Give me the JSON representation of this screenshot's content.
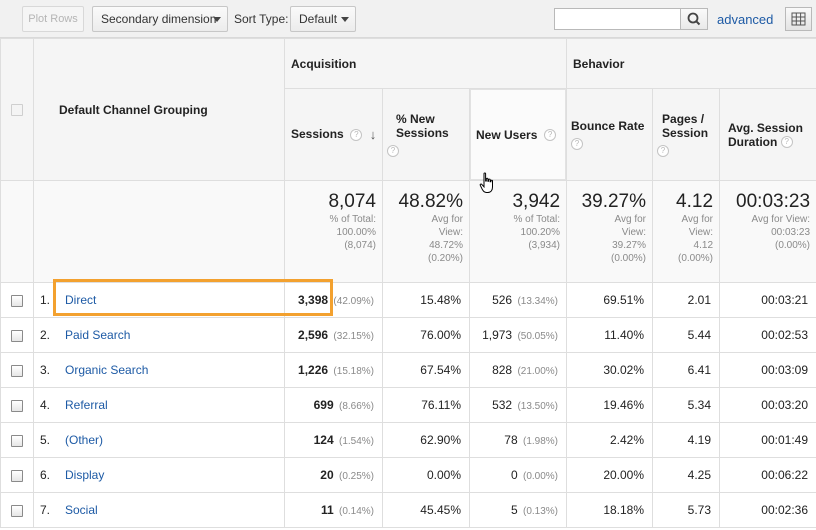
{
  "toolbar": {
    "plot_rows_label": "Plot Rows",
    "secondary_dimension_label": "Secondary dimension",
    "sort_type_label": "Sort Type:",
    "sort_type_value": "Default",
    "search_value": "",
    "advanced_label": "advanced"
  },
  "table": {
    "dimension_header": "Default Channel Grouping",
    "groups": {
      "acquisition": "Acquisition",
      "behavior": "Behavior"
    },
    "columns": {
      "sessions": "Sessions",
      "pct_new_sessions": "% New Sessions",
      "new_users": "New Users",
      "bounce_rate": "Bounce Rate",
      "pages_session": "Pages / Session",
      "avg_session_duration": "Avg. Session Duration"
    },
    "help_glyph": "?",
    "totals": {
      "sessions": {
        "value": "8,074",
        "l1": "% of Total:",
        "l2": "100.00%",
        "l3": "(8,074)"
      },
      "pct_new_sessions": {
        "value": "48.82%",
        "l1": "Avg for",
        "l2": "View:",
        "l3": "48.72%",
        "l4": "(0.20%)"
      },
      "new_users": {
        "value": "3,942",
        "l1": "% of Total:",
        "l2": "100.20%",
        "l3": "(3,934)"
      },
      "bounce_rate": {
        "value": "39.27%",
        "l1": "Avg for",
        "l2": "View:",
        "l3": "39.27%",
        "l4": "(0.00%)"
      },
      "pages_session": {
        "value": "4.12",
        "l1": "Avg for",
        "l2": "View:",
        "l3": "4.12",
        "l4": "(0.00%)"
      },
      "avg_session_duration": {
        "value": "00:03:23",
        "l1": "Avg for View:",
        "l2": "00:03:23",
        "l3": "(0.00%)"
      }
    },
    "rows": [
      {
        "index": "1.",
        "channel": "Direct",
        "sessions": "3,398",
        "sessions_pct": "(42.09%)",
        "pct_new": "15.48%",
        "new_users": "526",
        "new_users_pct": "(13.34%)",
        "bounce": "69.51%",
        "pages": "2.01",
        "duration": "00:03:21"
      },
      {
        "index": "2.",
        "channel": "Paid Search",
        "sessions": "2,596",
        "sessions_pct": "(32.15%)",
        "pct_new": "76.00%",
        "new_users": "1,973",
        "new_users_pct": "(50.05%)",
        "bounce": "11.40%",
        "pages": "5.44",
        "duration": "00:02:53"
      },
      {
        "index": "3.",
        "channel": "Organic Search",
        "sessions": "1,226",
        "sessions_pct": "(15.18%)",
        "pct_new": "67.54%",
        "new_users": "828",
        "new_users_pct": "(21.00%)",
        "bounce": "30.02%",
        "pages": "6.41",
        "duration": "00:03:09"
      },
      {
        "index": "4.",
        "channel": "Referral",
        "sessions": "699",
        "sessions_pct": "(8.66%)",
        "pct_new": "76.11%",
        "new_users": "532",
        "new_users_pct": "(13.50%)",
        "bounce": "19.46%",
        "pages": "5.34",
        "duration": "00:03:20"
      },
      {
        "index": "5.",
        "channel": "(Other)",
        "sessions": "124",
        "sessions_pct": "(1.54%)",
        "pct_new": "62.90%",
        "new_users": "78",
        "new_users_pct": "(1.98%)",
        "bounce": "2.42%",
        "pages": "4.19",
        "duration": "00:01:49"
      },
      {
        "index": "6.",
        "channel": "Display",
        "sessions": "20",
        "sessions_pct": "(0.25%)",
        "pct_new": "0.00%",
        "new_users": "0",
        "new_users_pct": "(0.00%)",
        "bounce": "20.00%",
        "pages": "4.25",
        "duration": "00:06:22"
      },
      {
        "index": "7.",
        "channel": "Social",
        "sessions": "11",
        "sessions_pct": "(0.14%)",
        "pct_new": "45.45%",
        "new_users": "5",
        "new_users_pct": "(0.13%)",
        "bounce": "18.18%",
        "pages": "5.73",
        "duration": "00:02:36"
      }
    ]
  },
  "colors": {
    "link": "#1d5aa5",
    "highlight": "#f3a12f",
    "header_bg": "#f5f5f5"
  }
}
